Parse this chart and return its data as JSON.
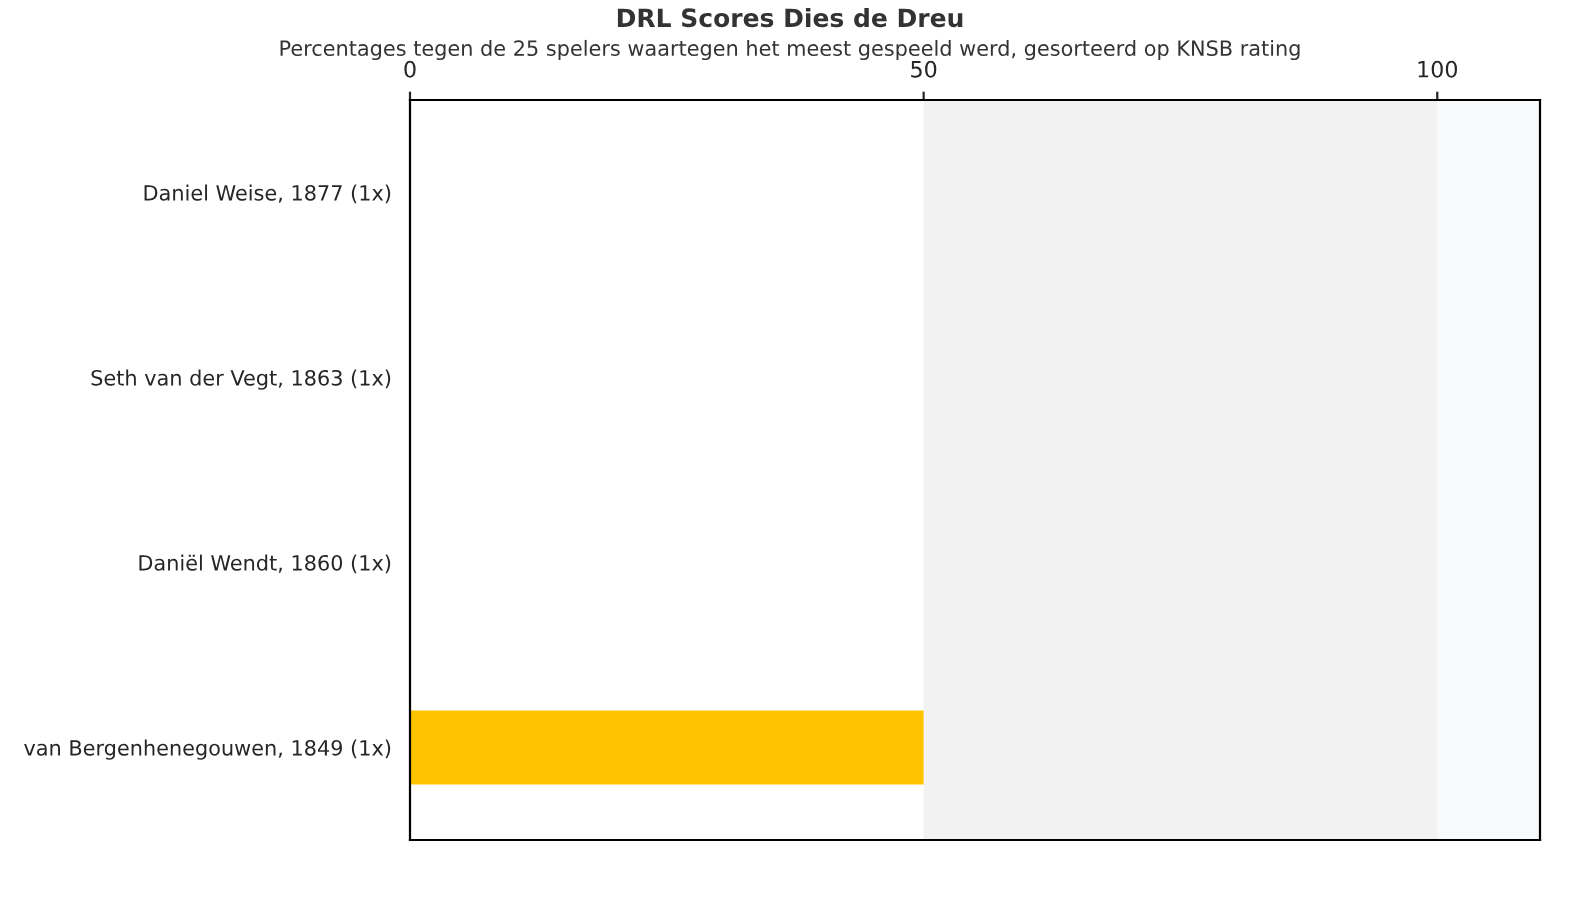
{
  "chart_data": {
    "type": "bar",
    "orientation": "horizontal",
    "title": "DRL Scores Dies de Dreu",
    "subtitle": "Percentages tegen de 25 spelers waartegen het meest gespeeld werd, gesorteerd op KNSB rating",
    "categories": [
      "Daniel Weise, 1877 (1x)",
      "Seth van der Vegt, 1863 (1x)",
      "Daniël Wendt, 1860 (1x)",
      "van Bergenhenegouwen, 1849 (1x)"
    ],
    "values": [
      0,
      0,
      0,
      50
    ],
    "color": "#ffc400",
    "xlim": [
      0,
      110
    ],
    "xticks": [
      0,
      50,
      100
    ],
    "bands": [
      {
        "axis": "x",
        "from": 50,
        "to": 100,
        "color": "#f2f2f2"
      },
      {
        "axis": "x",
        "from": 100,
        "to": 110,
        "color": "#f7f9fb"
      }
    ],
    "grid": false,
    "legend": false
  }
}
